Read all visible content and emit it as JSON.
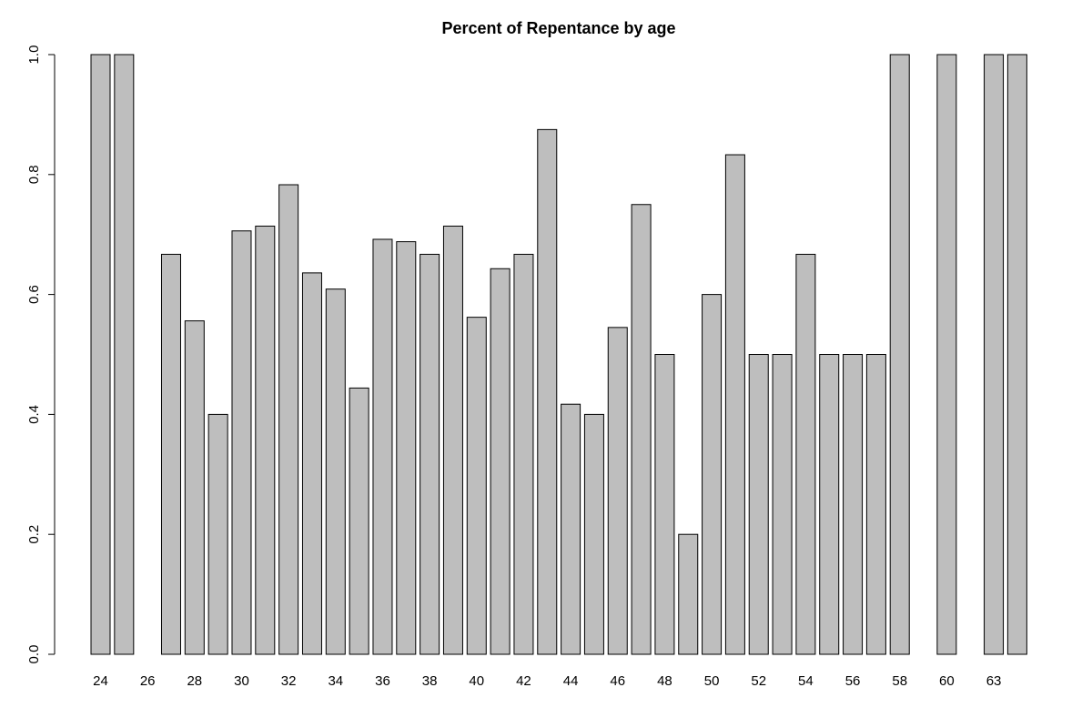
{
  "chart_data": {
    "type": "bar",
    "title": "Percent of Repentance by age",
    "xlabel": "",
    "ylabel": "",
    "ylim": [
      0,
      1
    ],
    "y_ticks": [
      0.0,
      0.2,
      0.4,
      0.6,
      0.8,
      1.0
    ],
    "y_tick_labels": [
      "0.0",
      "0.2",
      "0.4",
      "0.6",
      "0.8",
      "1.0"
    ],
    "grid": false,
    "bar_fill": "#bebebe",
    "bar_stroke": "#000000",
    "categories": [
      "24",
      "25",
      "26",
      "27",
      "28",
      "29",
      "30",
      "31",
      "32",
      "33",
      "34",
      "35",
      "36",
      "37",
      "38",
      "39",
      "40",
      "41",
      "42",
      "43",
      "44",
      "45",
      "46",
      "47",
      "48",
      "49",
      "50",
      "51",
      "52",
      "53",
      "54",
      "55",
      "56",
      "57",
      "58",
      "59",
      "60",
      "61",
      "63",
      "64"
    ],
    "shown_x_labels": [
      "24",
      "26",
      "28",
      "30",
      "32",
      "34",
      "36",
      "38",
      "40",
      "42",
      "44",
      "46",
      "48",
      "50",
      "52",
      "54",
      "56",
      "58",
      "60",
      "63"
    ],
    "values": [
      1.0,
      1.0,
      0.0,
      0.667,
      0.556,
      0.4,
      0.706,
      0.714,
      0.783,
      0.636,
      0.609,
      0.444,
      0.692,
      0.688,
      0.667,
      0.714,
      0.562,
      0.643,
      0.667,
      0.875,
      0.417,
      0.4,
      0.545,
      0.75,
      0.5,
      0.2,
      0.6,
      0.833,
      0.5,
      0.5,
      0.667,
      0.5,
      0.5,
      0.5,
      1.0,
      0.0,
      1.0,
      0.0,
      1.0,
      1.0
    ]
  }
}
